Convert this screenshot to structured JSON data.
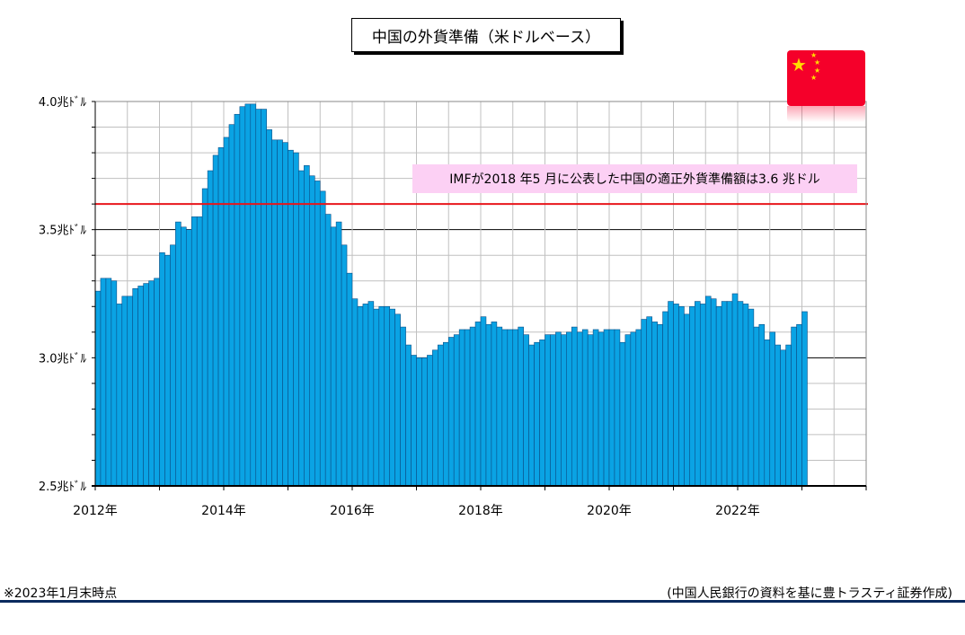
{
  "title": "中国の外貨準備（米ドルベース）",
  "annotation": "IMFが2018 年5 月に公表した中国の適正外貨準備額は3.6 兆ドル",
  "footnote": "※2023年1月末時点",
  "source": "(中国人民銀行の資料を基に豊トラスティ証券作成)",
  "flag_icon": "china-flag-icon",
  "colors": {
    "bar": "#0aa3e4",
    "bar_edge": "#0b4f88",
    "reference_line": "#e8161c",
    "grid": "#c0c0c0",
    "frame": "#000000"
  },
  "chart_data": {
    "type": "bar",
    "title": "中国の外貨準備（米ドルベース）",
    "xlabel": "",
    "ylabel": "",
    "y_unit_label": "兆ﾄﾞﾙ",
    "ylim": [
      2.5,
      4.0
    ],
    "yticks": [
      2.5,
      3.0,
      3.5,
      4.0
    ],
    "ytick_labels": [
      "2.5兆ﾄﾞﾙ",
      "3.0兆ﾄﾞﾙ",
      "3.5兆ﾄﾞﾙ",
      "4.0兆ﾄﾞﾙ"
    ],
    "x_range": [
      "2012-01",
      "2024-01"
    ],
    "xtick_labels": [
      "2012年",
      "2014年",
      "2016年",
      "2018年",
      "2020年",
      "2022年"
    ],
    "grid": true,
    "reference_line": {
      "value": 3.6,
      "label": "IMFが2018 年5 月に公表した中国の適正外貨準備額は3.6 兆ドル"
    },
    "start_month": "2012-01",
    "end_month": "2023-01",
    "values": [
      3.26,
      3.31,
      3.31,
      3.3,
      3.21,
      3.24,
      3.24,
      3.27,
      3.28,
      3.29,
      3.3,
      3.31,
      3.41,
      3.4,
      3.44,
      3.53,
      3.51,
      3.5,
      3.55,
      3.55,
      3.66,
      3.73,
      3.79,
      3.82,
      3.86,
      3.91,
      3.95,
      3.98,
      3.99,
      3.99,
      3.97,
      3.97,
      3.89,
      3.85,
      3.85,
      3.84,
      3.81,
      3.8,
      3.73,
      3.75,
      3.71,
      3.69,
      3.65,
      3.56,
      3.51,
      3.53,
      3.44,
      3.33,
      3.23,
      3.2,
      3.21,
      3.22,
      3.19,
      3.2,
      3.2,
      3.19,
      3.17,
      3.12,
      3.05,
      3.01,
      3.0,
      3.0,
      3.01,
      3.03,
      3.05,
      3.06,
      3.08,
      3.09,
      3.11,
      3.11,
      3.12,
      3.14,
      3.16,
      3.13,
      3.14,
      3.12,
      3.11,
      3.11,
      3.11,
      3.12,
      3.09,
      3.05,
      3.06,
      3.07,
      3.09,
      3.09,
      3.1,
      3.09,
      3.1,
      3.12,
      3.1,
      3.11,
      3.09,
      3.11,
      3.1,
      3.11,
      3.11,
      3.11,
      3.06,
      3.09,
      3.1,
      3.11,
      3.15,
      3.16,
      3.14,
      3.13,
      3.18,
      3.22,
      3.21,
      3.2,
      3.17,
      3.2,
      3.22,
      3.21,
      3.24,
      3.23,
      3.2,
      3.22,
      3.22,
      3.25,
      3.22,
      3.21,
      3.19,
      3.12,
      3.13,
      3.07,
      3.1,
      3.05,
      3.03,
      3.05,
      3.12,
      3.13,
      3.18
    ]
  }
}
